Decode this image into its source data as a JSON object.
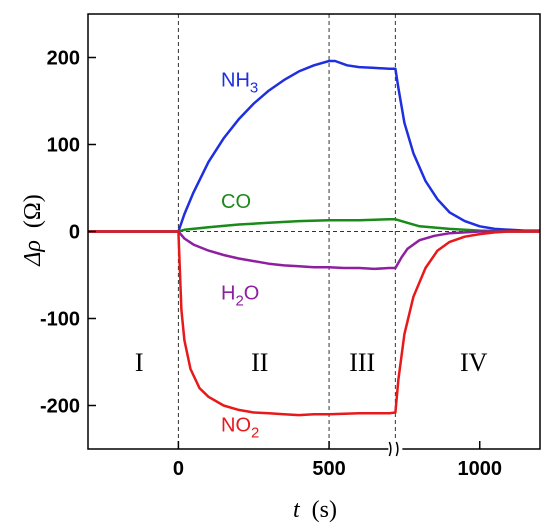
{
  "chart_data": {
    "type": "line",
    "title": "",
    "xlabel": {
      "symbol": "t",
      "unit": "(s)"
    },
    "ylabel": {
      "symbol": "Δρ",
      "unit": "(Ω)"
    },
    "xlim": [
      -300,
      1200
    ],
    "ylim": [
      -250,
      250
    ],
    "xticks": [
      0,
      500,
      1000
    ],
    "xtick_labels": [
      "0",
      "500",
      "1000"
    ],
    "yticks": [
      200,
      100,
      0,
      -100,
      -200
    ],
    "ytick_labels": [
      "200",
      "100",
      "0",
      "-100",
      "-200"
    ],
    "axis_break_x": 720,
    "grid": false,
    "reference_lines": {
      "vertical": [
        0,
        500,
        720
      ],
      "horizontal": [
        0
      ]
    },
    "regions": [
      {
        "label": "I",
        "x": -130
      },
      {
        "label": "II",
        "x": 270
      },
      {
        "label": "III",
        "x": 610
      },
      {
        "label": "IV",
        "x": 980
      }
    ],
    "series": [
      {
        "name": "NH3",
        "label_main": "NH",
        "label_sub": "3",
        "color": "#1f2fe0",
        "label_pos": [
          75,
          175
        ],
        "x": [
          -300,
          -100,
          0,
          20,
          50,
          100,
          150,
          200,
          250,
          300,
          350,
          400,
          450,
          500,
          520,
          560,
          600,
          650,
          700,
          720,
          730,
          750,
          780,
          820,
          860,
          900,
          950,
          1000,
          1050,
          1100,
          1150,
          1200
        ],
        "y": [
          0,
          0,
          0,
          20,
          45,
          80,
          107,
          129,
          147,
          162,
          174,
          184,
          191,
          196,
          196,
          191,
          189,
          188,
          187,
          187,
          165,
          125,
          90,
          58,
          37,
          22,
          12,
          6,
          3,
          2,
          1,
          1
        ]
      },
      {
        "name": "CO",
        "label_main": "CO",
        "label_sub": "",
        "color": "#1a8a1a",
        "label_pos": [
          75,
          35
        ],
        "x": [
          -300,
          0,
          20,
          100,
          200,
          300,
          400,
          500,
          600,
          700,
          720,
          760,
          800,
          900,
          1000,
          1100,
          1200
        ],
        "y": [
          0,
          0,
          2,
          5,
          8,
          10,
          12,
          13,
          13,
          14,
          14,
          10,
          6,
          3,
          1,
          0,
          0
        ]
      },
      {
        "name": "H2O",
        "label_main": "H",
        "label_sub": "2",
        "label_tail": "O",
        "color": "#8e1fa0",
        "label_pos": [
          75,
          -70
        ],
        "x": [
          -300,
          0,
          20,
          50,
          100,
          150,
          200,
          250,
          300,
          350,
          400,
          450,
          500,
          550,
          600,
          650,
          700,
          720,
          740,
          760,
          800,
          850,
          900,
          950,
          1000,
          1100,
          1200
        ],
        "y": [
          0,
          0,
          -8,
          -15,
          -22,
          -27,
          -31,
          -34,
          -37,
          -39,
          -40,
          -41,
          -41,
          -42,
          -42,
          -43,
          -42,
          -42,
          -30,
          -20,
          -10,
          -5,
          -2,
          -1,
          0,
          0,
          0
        ]
      },
      {
        "name": "NO2",
        "label_main": "NO",
        "label_sub": "2",
        "color": "#e8191a",
        "label_pos": [
          75,
          -222
        ],
        "x": [
          -300,
          0,
          10,
          20,
          40,
          70,
          100,
          150,
          200,
          250,
          300,
          350,
          400,
          450,
          500,
          600,
          700,
          720,
          730,
          750,
          780,
          820,
          860,
          900,
          950,
          1000,
          1050,
          1100,
          1200
        ],
        "y": [
          0,
          0,
          -90,
          -125,
          -158,
          -180,
          -190,
          -200,
          -205,
          -208,
          -209,
          -210,
          -211,
          -210,
          -210,
          -209,
          -209,
          -208,
          -170,
          -118,
          -75,
          -42,
          -22,
          -12,
          -6,
          -3,
          -1,
          0,
          0
        ]
      }
    ]
  }
}
